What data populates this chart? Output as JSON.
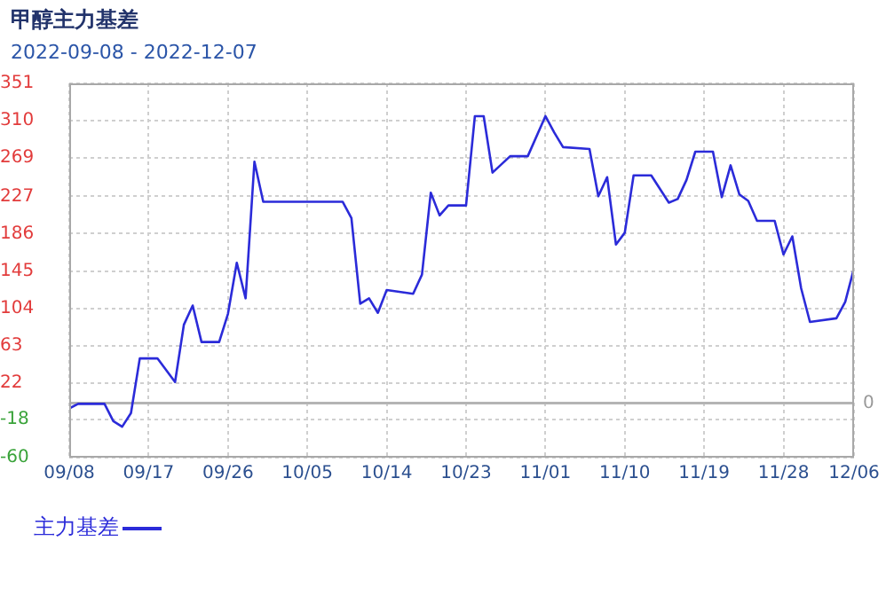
{
  "chart_data": {
    "type": "line",
    "title": "甲醇主力基差",
    "subtitle": "2022-09-08 - 2022-12-07",
    "x": [
      "--09-08",
      "--09-09",
      "--09-12",
      "--09-13",
      "--09-14",
      "--09-15",
      "--09-16",
      "--09-18",
      "--09-20",
      "--09-21",
      "--09-22",
      "--09-23",
      "--09-25",
      "--09-26",
      "--09-27",
      "--09-28",
      "--09-29",
      "--09-30",
      "--10-09",
      "--10-10",
      "--10-11",
      "--10-12",
      "--10-13",
      "--10-14",
      "--10-17",
      "--10-18",
      "--10-19",
      "--10-20",
      "--10-21",
      "--10-23",
      "--10-24",
      "--10-25",
      "--10-26",
      "--10-28",
      "--10-30",
      "--11-01",
      "--11-02",
      "--11-03",
      "--11-06",
      "--11-07",
      "--11-08",
      "--11-09",
      "--11-10",
      "--11-11",
      "--11-13",
      "--11-15",
      "--11-16",
      "--11-17",
      "--11-18",
      "--11-20",
      "--11-21",
      "--11-22",
      "--11-23",
      "--11-24",
      "--11-25",
      "--11-27",
      "--11-28",
      "--11-29",
      "--11-30",
      "--12-01",
      "--12-04",
      "--12-05",
      "--12-06"
    ],
    "series": [
      {
        "name": "主力基差",
        "color": "#2b2bd9",
        "values": [
          -6,
          -1,
          -1,
          -20,
          -26,
          -11,
          49,
          49,
          23,
          86,
          107,
          67,
          67,
          98,
          154,
          115,
          265,
          221,
          221,
          203,
          109,
          115,
          99,
          124,
          120,
          141,
          231,
          206,
          217,
          217,
          315,
          315,
          253,
          271,
          271,
          315,
          297,
          281,
          279,
          227,
          248,
          174,
          187,
          250,
          250,
          220,
          224,
          245,
          276,
          276,
          226,
          261,
          229,
          222,
          200,
          200,
          163,
          183,
          126,
          89,
          93,
          111,
          148
        ]
      }
    ],
    "xlim": [
      "--09-08",
      "--12-06"
    ],
    "xticks": [
      {
        "value": "--09-08",
        "label": "09/08"
      },
      {
        "value": "--09-17",
        "label": "09/17"
      },
      {
        "value": "--09-26",
        "label": "09/26"
      },
      {
        "value": "--10-05",
        "label": "10/05"
      },
      {
        "value": "--10-14",
        "label": "10/14"
      },
      {
        "value": "--10-23",
        "label": "10/23"
      },
      {
        "value": "--11-01",
        "label": "11/01"
      },
      {
        "value": "--11-10",
        "label": "11/10"
      },
      {
        "value": "--11-19",
        "label": "11/19"
      },
      {
        "value": "--11-28",
        "label": "11/28"
      },
      {
        "value": "--12-06",
        "label": "12/06"
      }
    ],
    "ylim": [
      -60,
      351
    ],
    "yticks": [
      -60,
      -18,
      22,
      63,
      104,
      145,
      186,
      227,
      269,
      310,
      351
    ],
    "ref_lines": [
      {
        "axis": "y",
        "value": 0,
        "label": "0",
        "color": "#b4b4b4"
      }
    ],
    "grid": true,
    "legend": "bottom left",
    "marker": "none",
    "line_style": "solid"
  }
}
